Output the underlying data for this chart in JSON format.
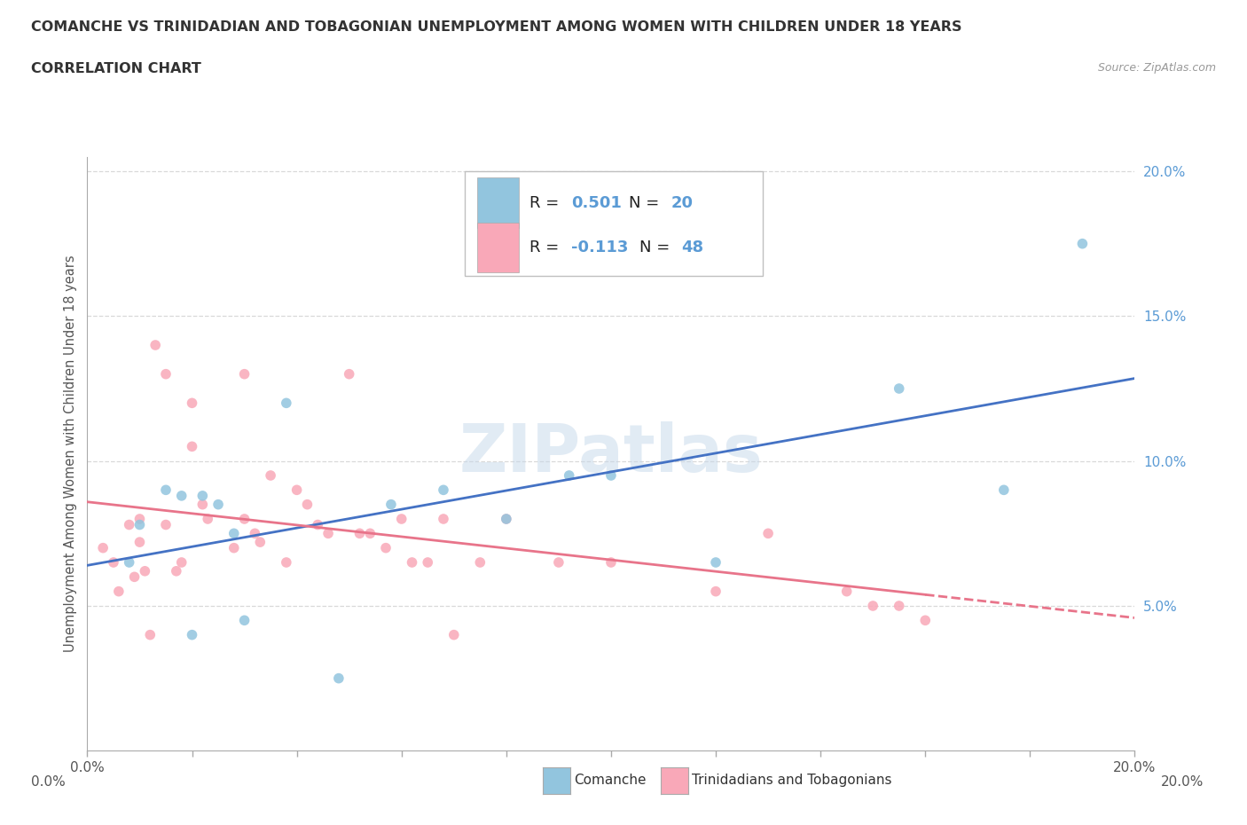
{
  "title_line1": "COMANCHE VS TRINIDADIAN AND TOBAGONIAN UNEMPLOYMENT AMONG WOMEN WITH CHILDREN UNDER 18 YEARS",
  "title_line2": "CORRELATION CHART",
  "source": "Source: ZipAtlas.com",
  "ylabel": "Unemployment Among Women with Children Under 18 years",
  "x_min": 0.0,
  "x_max": 0.2,
  "y_min": 0.0,
  "y_max": 0.205,
  "comanche_color": "#92c5de",
  "trinidadian_color": "#f9a8b8",
  "comanche_r": 0.501,
  "comanche_n": 20,
  "trinidadian_r": -0.113,
  "trinidadian_n": 48,
  "regression_blue": "#4472c4",
  "regression_pink": "#e8748a",
  "watermark": "ZIPatlas",
  "yticklabel_color": "#5b9bd5",
  "grid_color": "#d9d9d9",
  "comanche_x": [
    0.008,
    0.01,
    0.015,
    0.018,
    0.02,
    0.022,
    0.025,
    0.028,
    0.03,
    0.038,
    0.048,
    0.058,
    0.068,
    0.08,
    0.092,
    0.1,
    0.12,
    0.155,
    0.175,
    0.19
  ],
  "comanche_y": [
    0.065,
    0.078,
    0.09,
    0.088,
    0.04,
    0.088,
    0.085,
    0.075,
    0.045,
    0.12,
    0.025,
    0.085,
    0.09,
    0.08,
    0.095,
    0.095,
    0.065,
    0.125,
    0.09,
    0.175
  ],
  "trinidadian_x": [
    0.003,
    0.005,
    0.006,
    0.008,
    0.009,
    0.01,
    0.01,
    0.011,
    0.012,
    0.013,
    0.015,
    0.015,
    0.017,
    0.018,
    0.02,
    0.02,
    0.022,
    0.023,
    0.028,
    0.03,
    0.03,
    0.032,
    0.033,
    0.035,
    0.038,
    0.04,
    0.042,
    0.044,
    0.046,
    0.05,
    0.052,
    0.054,
    0.057,
    0.06,
    0.062,
    0.065,
    0.068,
    0.07,
    0.075,
    0.08,
    0.09,
    0.1,
    0.12,
    0.13,
    0.145,
    0.15,
    0.155,
    0.16
  ],
  "trinidadian_y": [
    0.07,
    0.065,
    0.055,
    0.078,
    0.06,
    0.08,
    0.072,
    0.062,
    0.04,
    0.14,
    0.13,
    0.078,
    0.062,
    0.065,
    0.12,
    0.105,
    0.085,
    0.08,
    0.07,
    0.13,
    0.08,
    0.075,
    0.072,
    0.095,
    0.065,
    0.09,
    0.085,
    0.078,
    0.075,
    0.13,
    0.075,
    0.075,
    0.07,
    0.08,
    0.065,
    0.065,
    0.08,
    0.04,
    0.065,
    0.08,
    0.065,
    0.065,
    0.055,
    0.075,
    0.055,
    0.05,
    0.05,
    0.045
  ]
}
